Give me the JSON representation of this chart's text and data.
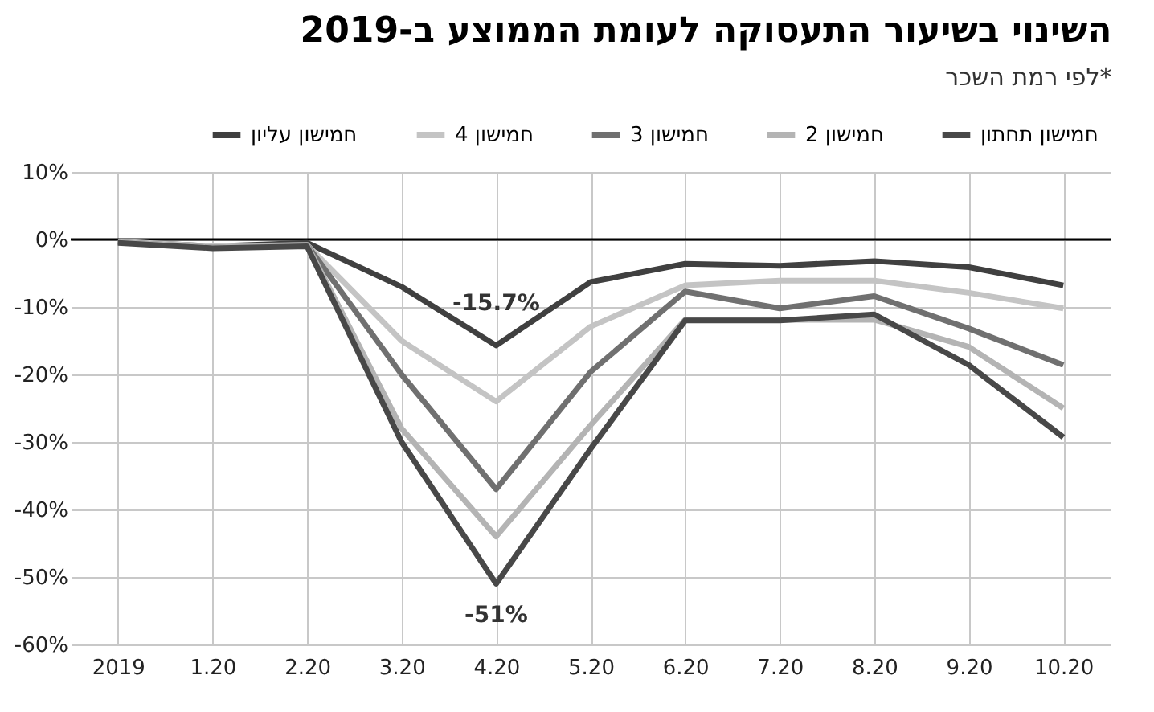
{
  "chart_data": {
    "type": "line",
    "title": "השינוי בשיעור התעסוקה לעומת הממוצע ב-2019",
    "subtitle": "לפי רמת השכר*",
    "categories": [
      "2019",
      "1.20",
      "2.20",
      "3.20",
      "4.20",
      "5.20",
      "6.20",
      "7.20",
      "8.20",
      "9.20",
      "10.20"
    ],
    "series": [
      {
        "name": "חמישון עליון",
        "color": "#404040",
        "values": [
          -0.3,
          -1,
          -0.5,
          -7,
          -15.7,
          -6.3,
          -3.6,
          -3.9,
          -3.2,
          -4.1,
          -6.8
        ]
      },
      {
        "name": "חמישון 4",
        "color": "#c4c4c4",
        "values": [
          -0.3,
          -1,
          -0.8,
          -15,
          -24,
          -12.9,
          -6.8,
          -6.1,
          -6.1,
          -7.9,
          -10.2
        ]
      },
      {
        "name": "חמישון 3",
        "color": "#707070",
        "values": [
          -0.4,
          -1.2,
          -0.8,
          -20,
          -37,
          -19.6,
          -7.7,
          -10.2,
          -8.4,
          -13.2,
          -18.6
        ]
      },
      {
        "name": "חמישון 2",
        "color": "#b4b4b4",
        "values": [
          -0.4,
          -1.2,
          -0.8,
          -28,
          -44,
          -27.5,
          -11.9,
          -11.9,
          -11.9,
          -15.9,
          -25
        ]
      },
      {
        "name": "חמישון תחתון",
        "color": "#484848",
        "values": [
          -0.5,
          -1.3,
          -1,
          -30,
          -51,
          -31,
          -12,
          -12,
          -11.1,
          -18.6,
          -29.3
        ]
      }
    ],
    "ylim": [
      -60,
      10
    ],
    "yticks": [
      {
        "value": 10,
        "label": "10%"
      },
      {
        "value": 0,
        "label": "0%"
      },
      {
        "value": -10,
        "label": "-10%"
      },
      {
        "value": -20,
        "label": "-20%"
      },
      {
        "value": -30,
        "label": "-30%"
      },
      {
        "value": -40,
        "label": "-40%"
      },
      {
        "value": -50,
        "label": "-50%"
      },
      {
        "value": -60,
        "label": "-60%"
      }
    ],
    "ref_lines": [
      {
        "axis": "y",
        "value": 0,
        "color": "#000000"
      }
    ],
    "annotations": [
      {
        "text": "-15.7%",
        "x": "4.20",
        "y": -15.7
      },
      {
        "text": "-51%",
        "x": "4.20",
        "y": -51
      }
    ],
    "grid": true,
    "legend": "top right",
    "marker": "none",
    "line_style": "solid"
  }
}
